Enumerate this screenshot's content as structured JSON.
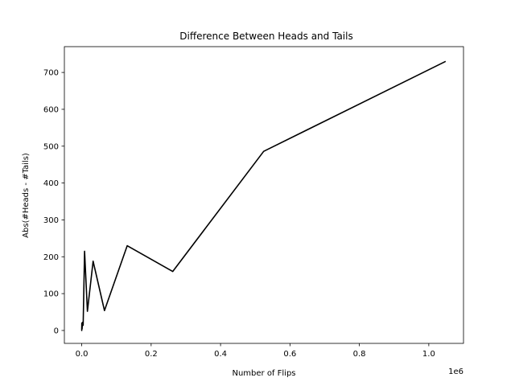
{
  "chart_data": {
    "type": "line",
    "title": "Difference Between Heads and Tails",
    "xlabel": "Number of Flips",
    "ylabel": "Abs(#Heads - #Tails)",
    "x_offset_label": "1e6",
    "xlim": [
      -50000,
      1100000
    ],
    "ylim": [
      -35,
      770
    ],
    "xticks": [
      0,
      0.2,
      0.4,
      0.6,
      0.8,
      1.0
    ],
    "xtick_labels": [
      "0.0",
      "0.2",
      "0.4",
      "0.6",
      "0.8",
      "1.0"
    ],
    "yticks": [
      0,
      100,
      200,
      300,
      400,
      500,
      600,
      700
    ],
    "ytick_labels": [
      "0",
      "100",
      "200",
      "300",
      "400",
      "500",
      "600",
      "700"
    ],
    "grid": false,
    "series": [
      {
        "color": "#000000",
        "x": [
          1,
          2,
          4,
          8,
          16,
          32,
          64,
          128,
          256,
          512,
          1024,
          2048,
          4096,
          8192,
          16384,
          32768,
          65536,
          131072,
          262144,
          524288,
          1048576
        ],
        "y": [
          1,
          0,
          2,
          4,
          6,
          4,
          10,
          8,
          20,
          10,
          4,
          22,
          14,
          215,
          52,
          188,
          54,
          230,
          160,
          486,
          730
        ]
      }
    ]
  }
}
